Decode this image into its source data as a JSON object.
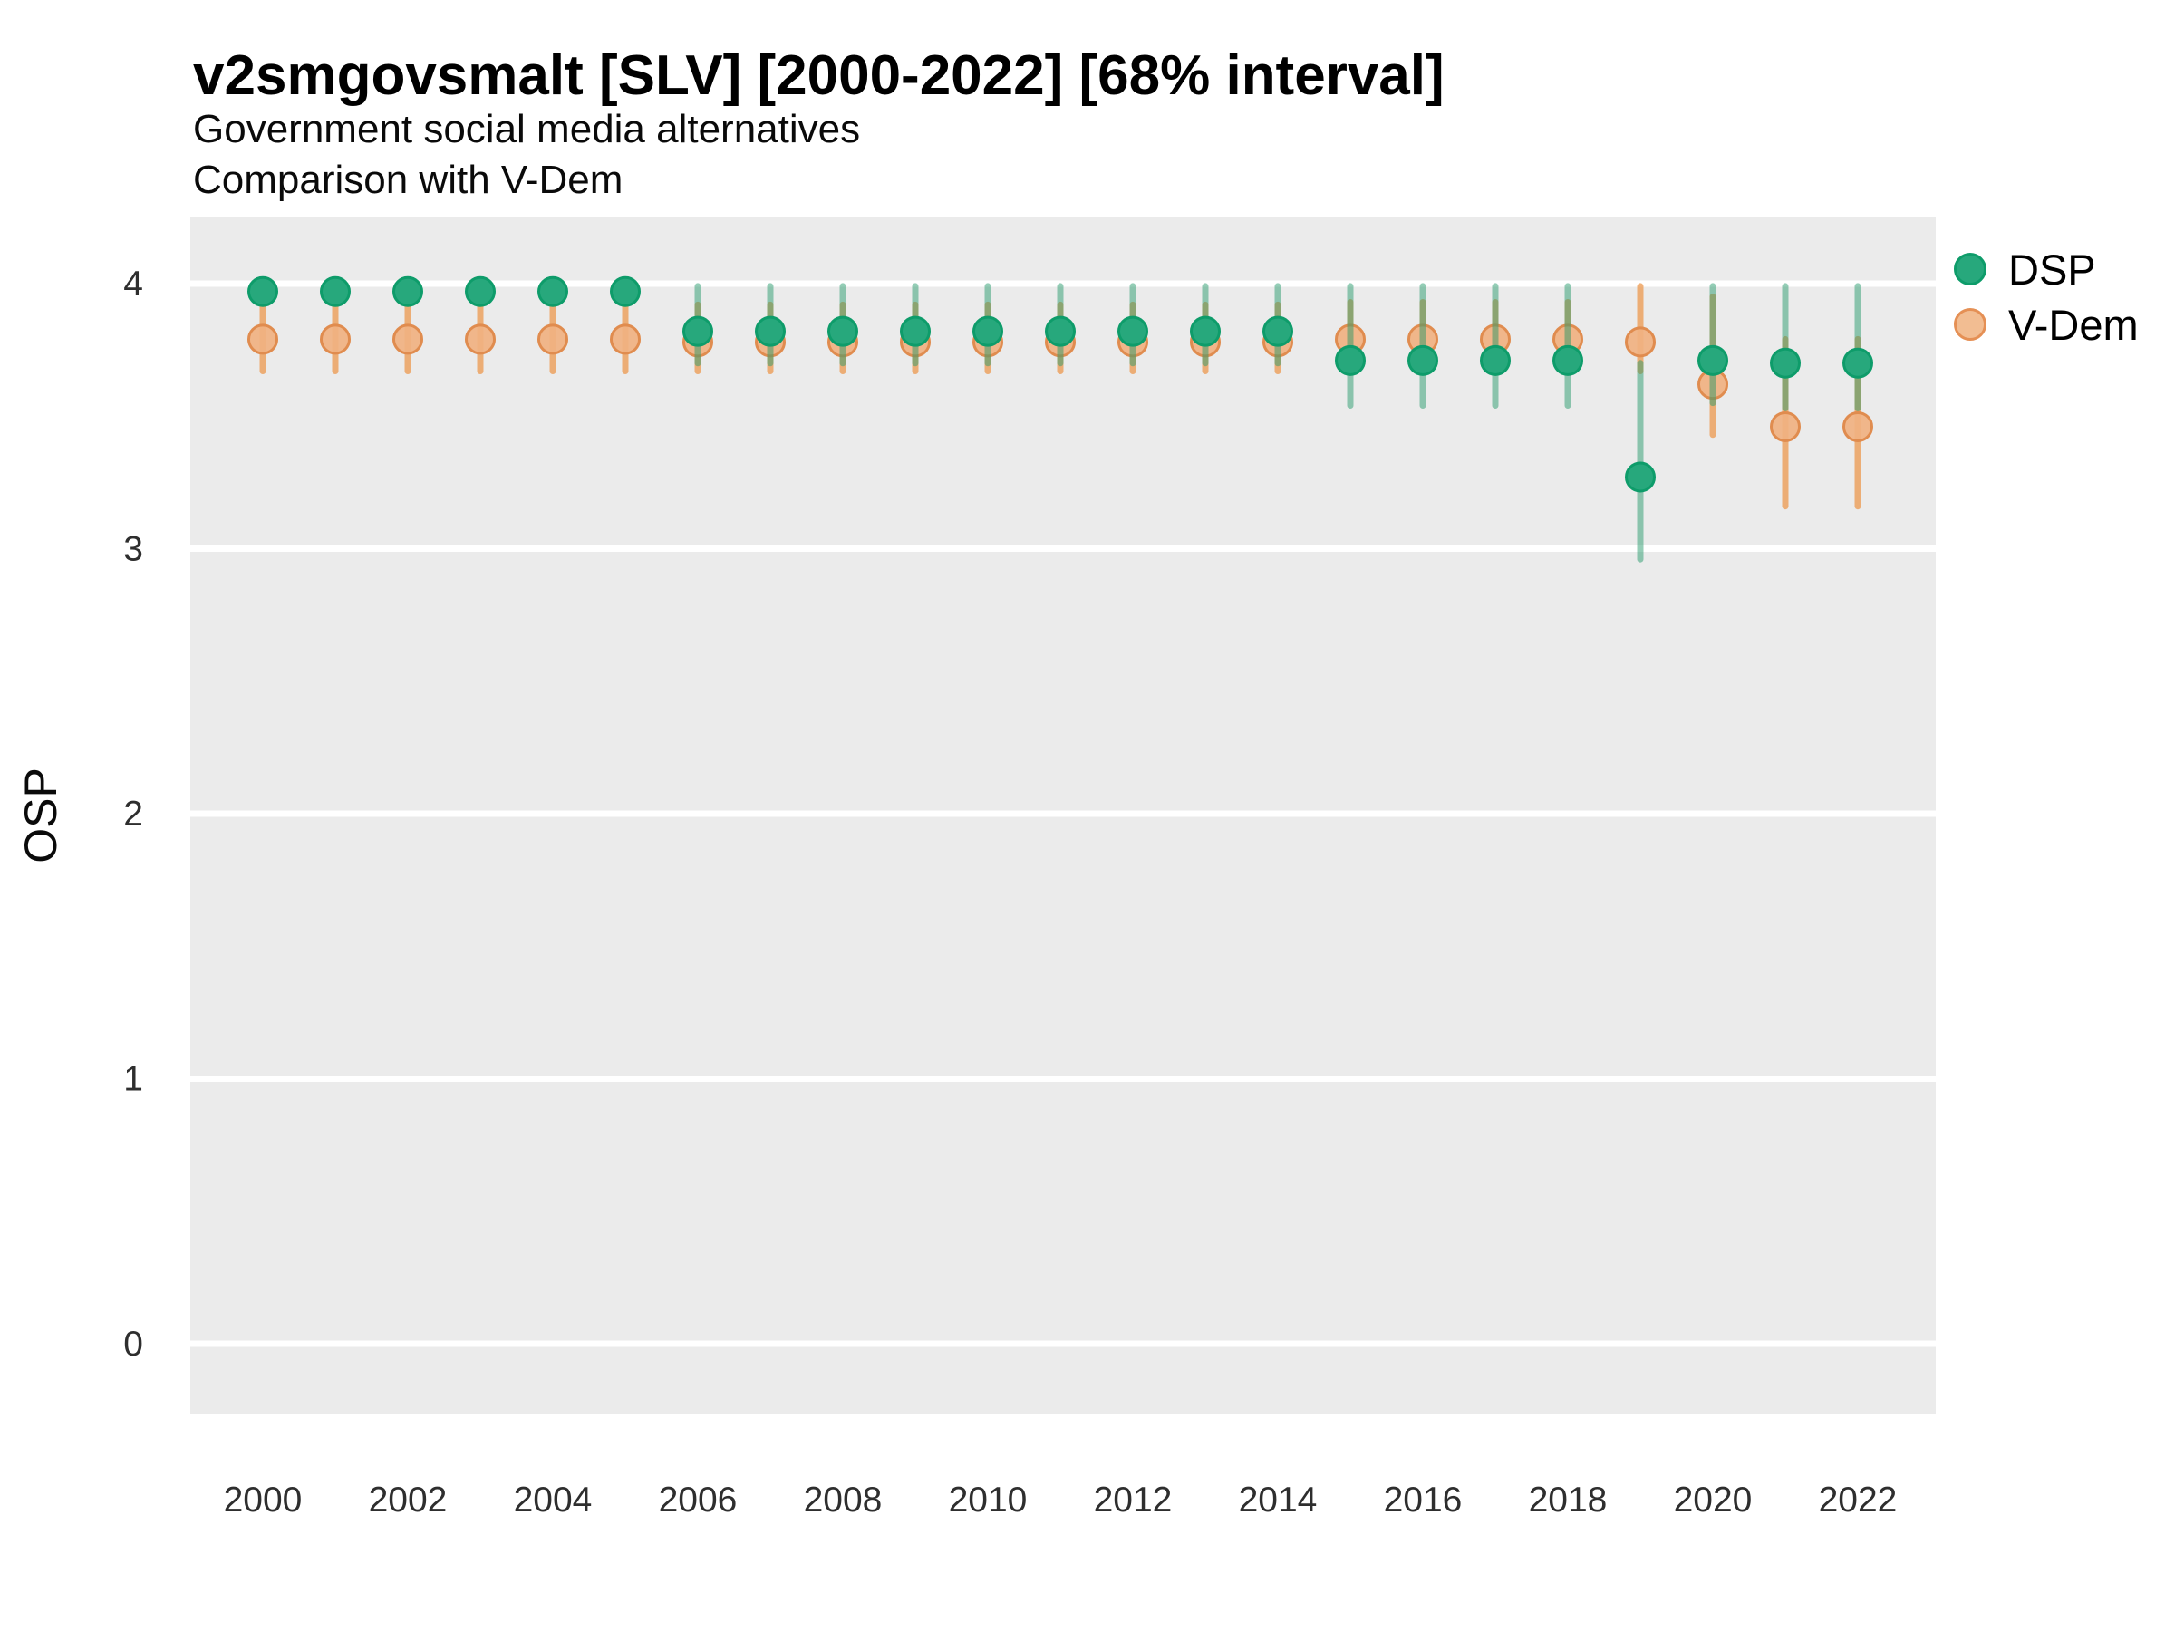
{
  "header": {
    "title": "v2smgovsmalt [SLV] [2000-2022] [68% interval]",
    "subtitle1": "Government social media alternatives",
    "subtitle2": "Comparison with V-Dem"
  },
  "axes": {
    "y_label": "OSP",
    "y_ticks": [
      "4",
      "3",
      "2",
      "1",
      "0"
    ],
    "x_ticks": [
      "2000",
      "2002",
      "2004",
      "2006",
      "2008",
      "2010",
      "2012",
      "2014",
      "2016",
      "2018",
      "2020",
      "2022"
    ]
  },
  "legend": {
    "items": [
      {
        "label": "DSP",
        "fill": "#27a87c",
        "stroke": "#0e9c6a"
      },
      {
        "label": "V-Dem",
        "fill": "#f2bd92",
        "stroke": "#e59055"
      }
    ]
  },
  "colors": {
    "panel_bg": "#ebebeb",
    "gridline": "#ffffff",
    "dsp_dot_fill": "#27a87c",
    "dsp_dot_stroke": "#0e9c6a",
    "dsp_bar": "rgba(42,156,110,0.5)",
    "vdem_dot_fill": "#f0b181",
    "vdem_dot_stroke": "#e08c4f",
    "vdem_bar": "rgba(235,148,70,0.72)",
    "tick_text": "#2e2e2e",
    "axis_text": "#0a0a0a"
  },
  "chart_data": {
    "type": "scatter",
    "title": "v2smgovsmalt [SLV] [2000-2022] [68% interval]",
    "xlabel": "",
    "ylabel": "OSP",
    "ylim": [
      0,
      4
    ],
    "xlim": [
      2000,
      2022
    ],
    "grid": "major-horizontal-white-on-gray",
    "legend_position": "right-top",
    "interval_note": "68% interval shown as vertical bars",
    "x": [
      2000,
      2001,
      2002,
      2003,
      2004,
      2005,
      2006,
      2007,
      2008,
      2009,
      2010,
      2011,
      2012,
      2013,
      2014,
      2015,
      2016,
      2017,
      2018,
      2019,
      2020,
      2021,
      2022
    ],
    "series": [
      {
        "name": "DSP",
        "est": [
          3.97,
          3.97,
          3.97,
          3.97,
          3.97,
          3.97,
          3.82,
          3.82,
          3.82,
          3.82,
          3.82,
          3.82,
          3.82,
          3.82,
          3.82,
          3.71,
          3.71,
          3.71,
          3.71,
          3.27,
          3.71,
          3.7,
          3.7
        ],
        "lo": [
          3.93,
          3.93,
          3.93,
          3.93,
          3.93,
          3.93,
          3.7,
          3.7,
          3.7,
          3.7,
          3.7,
          3.7,
          3.7,
          3.7,
          3.7,
          3.54,
          3.54,
          3.54,
          3.54,
          2.96,
          3.55,
          3.53,
          3.53
        ],
        "hi": [
          4.0,
          4.0,
          4.0,
          4.0,
          4.0,
          4.0,
          3.99,
          3.99,
          3.99,
          3.99,
          3.99,
          3.99,
          3.99,
          3.99,
          3.99,
          3.99,
          3.99,
          3.99,
          3.99,
          3.7,
          3.99,
          3.99,
          3.99
        ]
      },
      {
        "name": "V-Dem",
        "est": [
          3.79,
          3.79,
          3.79,
          3.79,
          3.79,
          3.79,
          3.78,
          3.78,
          3.78,
          3.78,
          3.78,
          3.78,
          3.78,
          3.78,
          3.78,
          3.79,
          3.79,
          3.79,
          3.79,
          3.78,
          3.62,
          3.46,
          3.46
        ],
        "lo": [
          3.67,
          3.67,
          3.67,
          3.67,
          3.67,
          3.67,
          3.67,
          3.67,
          3.67,
          3.67,
          3.67,
          3.67,
          3.67,
          3.67,
          3.67,
          3.67,
          3.67,
          3.67,
          3.67,
          3.67,
          3.43,
          3.16,
          3.16
        ],
        "hi": [
          3.92,
          3.92,
          3.92,
          3.92,
          3.92,
          3.92,
          3.92,
          3.92,
          3.92,
          3.92,
          3.92,
          3.92,
          3.92,
          3.92,
          3.92,
          3.93,
          3.93,
          3.93,
          3.93,
          3.99,
          3.95,
          3.79,
          3.79
        ]
      }
    ]
  }
}
